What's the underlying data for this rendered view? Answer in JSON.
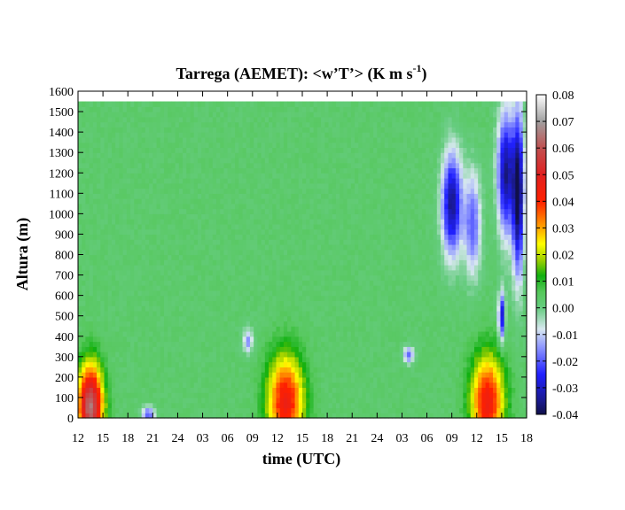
{
  "chart_data": {
    "type": "heatmap",
    "title": "Tarrega (AEMET): <w’T’> (K m s",
    "title_superscript": "-1",
    "title_suffix": ")",
    "xlabel": "time (UTC)",
    "ylabel": "Altura (m)",
    "x_tick_labels": [
      "12",
      "15",
      "18",
      "21",
      "24",
      "03",
      "06",
      "09",
      "12",
      "15",
      "18",
      "21",
      "24",
      "03",
      "06",
      "09",
      "12",
      "15",
      "18"
    ],
    "x_range_hours": [
      0,
      54
    ],
    "ylim": [
      0,
      1600
    ],
    "y_ticks": [
      0,
      100,
      200,
      300,
      400,
      500,
      600,
      700,
      800,
      900,
      1000,
      1100,
      1200,
      1300,
      1400,
      1500,
      1600
    ],
    "data_top_m": 1550,
    "colorbar": {
      "range": [
        -0.04,
        0.08
      ],
      "ticks": [
        "0.08",
        "0.07",
        "0.06",
        "0.05",
        "0.04",
        "0.03",
        "0.02",
        "0.01",
        "0.00",
        "-0.01",
        "-0.02",
        "-0.03",
        "-0.04"
      ],
      "stops": [
        {
          "v": -0.04,
          "c": "#10104a"
        },
        {
          "v": -0.035,
          "c": "#1a1a8c"
        },
        {
          "v": -0.025,
          "c": "#2020ff"
        },
        {
          "v": -0.015,
          "c": "#8c94ff"
        },
        {
          "v": -0.008,
          "c": "#d8e8f0"
        },
        {
          "v": 0.0,
          "c": "#66cc80"
        },
        {
          "v": 0.006,
          "c": "#55c85a"
        },
        {
          "v": 0.012,
          "c": "#10b010"
        },
        {
          "v": 0.018,
          "c": "#a0d000"
        },
        {
          "v": 0.024,
          "c": "#ffff00"
        },
        {
          "v": 0.03,
          "c": "#ffa500"
        },
        {
          "v": 0.04,
          "c": "#ff2000"
        },
        {
          "v": 0.05,
          "c": "#e02020"
        },
        {
          "v": 0.06,
          "c": "#c05050"
        },
        {
          "v": 0.07,
          "c": "#a0a0a0"
        },
        {
          "v": 0.08,
          "c": "#ffffff"
        }
      ]
    },
    "background_value": 0.003,
    "features": [
      {
        "t": 1.5,
        "z": 60,
        "peak": 0.065,
        "wt": 1.5,
        "hz": 200,
        "kind": "positive"
      },
      {
        "t": 25.0,
        "z": 80,
        "peak": 0.045,
        "wt": 2.2,
        "hz": 230,
        "kind": "positive"
      },
      {
        "t": 49.3,
        "z": 80,
        "peak": 0.045,
        "wt": 2.0,
        "hz": 230,
        "kind": "positive"
      },
      {
        "t": 8.5,
        "z": 20,
        "peak": -0.02,
        "wt": 0.8,
        "hz": 40,
        "kind": "negative"
      },
      {
        "t": 45.0,
        "z": 1050,
        "peak": -0.035,
        "wt": 1.2,
        "hz": 250,
        "kind": "negative"
      },
      {
        "t": 47.5,
        "z": 950,
        "peak": -0.02,
        "wt": 1.0,
        "hz": 250,
        "kind": "negative"
      },
      {
        "t": 51.5,
        "z": 1200,
        "peak": -0.035,
        "wt": 1.0,
        "hz": 300,
        "kind": "negative"
      },
      {
        "t": 53.0,
        "z": 1100,
        "peak": -0.04,
        "wt": 0.7,
        "hz": 400,
        "kind": "negative"
      },
      {
        "t": 51.0,
        "z": 500,
        "peak": -0.03,
        "wt": 0.4,
        "hz": 120,
        "kind": "negative"
      },
      {
        "t": 39.8,
        "z": 310,
        "peak": -0.02,
        "wt": 0.6,
        "hz": 40,
        "kind": "negative"
      },
      {
        "t": 20.5,
        "z": 380,
        "peak": -0.015,
        "wt": 0.6,
        "hz": 60,
        "kind": "negative"
      }
    ]
  }
}
